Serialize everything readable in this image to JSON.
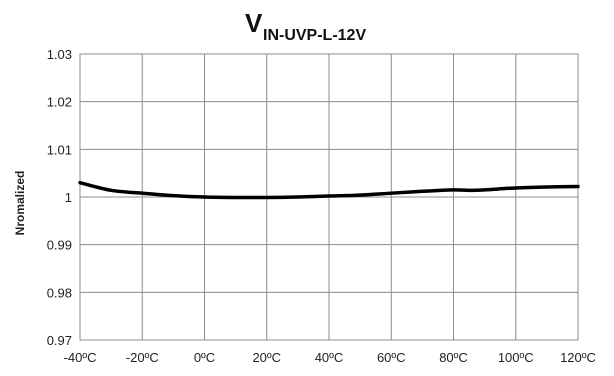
{
  "chart_data": {
    "type": "line",
    "title_main": "V",
    "title_sub": "IN-UVP-L-12V",
    "xlabel": "",
    "ylabel": "Nromalized",
    "x_tick_labels": [
      "-40ºC",
      "-20ºC",
      "0ºC",
      "20ºC",
      "40ºC",
      "60ºC",
      "80ºC",
      "100ºC",
      "120ºC"
    ],
    "y_tick_labels": [
      "0.97",
      "0.98",
      "0.99",
      "1",
      "1.01",
      "1.02",
      "1.03"
    ],
    "xlim": [
      -40,
      120
    ],
    "ylim": [
      0.97,
      1.03
    ],
    "grid": true,
    "series": [
      {
        "color": "#000000",
        "x": [
          -40,
          -30,
          -20,
          -10,
          0,
          10,
          20,
          30,
          40,
          50,
          60,
          70,
          80,
          85,
          90,
          100,
          110,
          120
        ],
        "y": [
          1.003,
          1.0014,
          1.0008,
          1.0003,
          1.0,
          0.9999,
          0.9999,
          1.0,
          1.0002,
          1.0004,
          1.0008,
          1.0012,
          1.0015,
          1.0014,
          1.0015,
          1.0019,
          1.0021,
          1.0022
        ]
      }
    ]
  }
}
